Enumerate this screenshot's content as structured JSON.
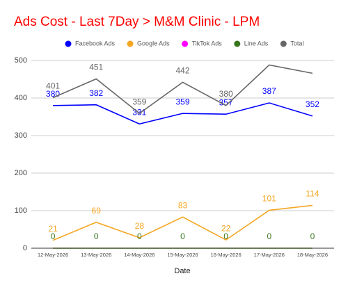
{
  "chart_data": {
    "type": "line",
    "title": "Ads Cost - Last 7Day > M&M Clinic - LPM",
    "x_label": "Date",
    "categories": [
      "12-May-2026",
      "13-May-2026",
      "14-May-2026",
      "15-May-2026",
      "16-May-2026",
      "17-May-2026",
      "18-May-2026"
    ],
    "series": [
      {
        "name": "Facebook Ads",
        "color": "#0000ff",
        "values": [
          380,
          382,
          331,
          359,
          357,
          387,
          352
        ],
        "show_labels": true
      },
      {
        "name": "Google Ads",
        "color": "#f5a623",
        "values": [
          21,
          69,
          28,
          83,
          22,
          101,
          114
        ],
        "show_labels": true
      },
      {
        "name": "TikTok Ads",
        "color": "#ff00ff",
        "values": [
          0,
          0,
          0,
          0,
          0,
          0,
          0
        ],
        "show_labels": false
      },
      {
        "name": "Line Ads",
        "color": "#38761d",
        "values": [
          0,
          0,
          0,
          0,
          0,
          0,
          0
        ],
        "show_labels": true
      },
      {
        "name": "Total",
        "color": "#666666",
        "values": [
          401,
          451,
          359,
          442,
          380,
          488,
          466
        ],
        "value_labels": [
          "401",
          "451",
          "359",
          "442",
          "380",
          null,
          null
        ]
      }
    ],
    "ylim": [
      0,
      500
    ],
    "yticks": [
      0,
      100,
      200,
      300,
      400,
      500
    ],
    "grid": true,
    "legend": "top"
  }
}
